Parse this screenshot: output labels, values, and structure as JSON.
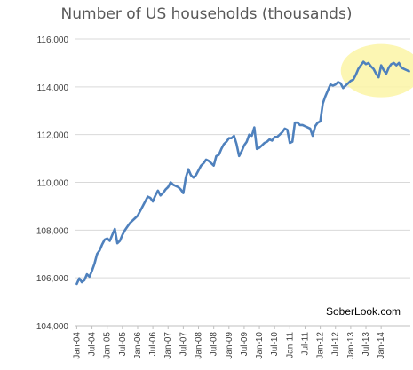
{
  "chart_data": {
    "type": "line",
    "title": "Number of US households (thousands)",
    "xlabel": "",
    "ylabel": "",
    "ylim": [
      104000,
      116000
    ],
    "y_ticks": [
      104000,
      106000,
      108000,
      110000,
      112000,
      114000,
      116000
    ],
    "y_tick_labels": [
      "104,000",
      "106,000",
      "108,000",
      "110,000",
      "112,000",
      "114,000",
      "116,000"
    ],
    "x_tick_labels": [
      "Jan-04",
      "Jul-04",
      "Jan-05",
      "Jul-05",
      "Jan-06",
      "Jul-06",
      "Jan-07",
      "Jul-07",
      "Jan-08",
      "Jul-08",
      "Jan-09",
      "Jul-09",
      "Jan-10",
      "Jul-10",
      "Jan-11",
      "Jul-11",
      "Jan-12",
      "Jul-12",
      "Jan-13",
      "Jul-13",
      "Jan-14"
    ],
    "grid": "horizontal",
    "legend": "none",
    "line_color": "#4f81bd",
    "highlight_color": "#fbf5a6",
    "series": [
      {
        "values": [
          105750,
          105980,
          105820,
          105900,
          106150,
          106050,
          106300,
          106600,
          107000,
          107150,
          107400,
          107600,
          107650,
          107550,
          107800,
          108050,
          107450,
          107550,
          107800,
          108000,
          108150,
          108300,
          108400,
          108500,
          108600,
          108800,
          109000,
          109200,
          109400,
          109350,
          109200,
          109450,
          109650,
          109450,
          109550,
          109700,
          109800,
          110000,
          109900,
          109850,
          109800,
          109700,
          109550,
          110200,
          110550,
          110300,
          110200,
          110300,
          110500,
          110700,
          110800,
          110950,
          110900,
          110800,
          110700,
          111100,
          111150,
          111400,
          111600,
          111700,
          111850,
          111850,
          111950,
          111600,
          111100,
          111300,
          111550,
          111700,
          112000,
          111950,
          112300,
          111400,
          111450,
          111550,
          111650,
          111700,
          111800,
          111750,
          111900,
          111900,
          112000,
          112100,
          112250,
          112200,
          111650,
          111700,
          112500,
          112500,
          112400,
          112400,
          112350,
          112300,
          112250,
          111950,
          112350,
          112500,
          112550,
          113300,
          113600,
          113850,
          114100,
          114050,
          114100,
          114200,
          114150,
          113950,
          114050,
          114150,
          114250,
          114300,
          114500,
          114750,
          114900,
          115050,
          114950,
          115000,
          114850,
          114750,
          114550,
          114400,
          114900,
          114700,
          114550,
          114800,
          114950,
          115000,
          114900,
          115000,
          114800,
          114750,
          114700,
          114650
        ]
      }
    ]
  },
  "watermark": "SoberLook.com"
}
